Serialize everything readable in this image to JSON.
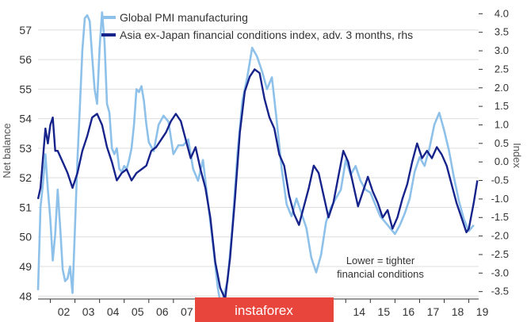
{
  "chart_data": {
    "type": "line",
    "title": "",
    "xlabel": "",
    "ylabel": "Net balance",
    "y2label": "Index",
    "ylim": [
      47.9,
      57.8
    ],
    "y2lim": [
      -3.7,
      4.2
    ],
    "yticks": [
      48,
      49,
      50,
      51,
      52,
      53,
      54,
      55,
      56,
      57
    ],
    "y2ticks": [
      "4.0",
      "3.5",
      "3.0",
      "2.5",
      "2.0",
      "1.5",
      "1.0",
      "0.5",
      "0.0",
      "-0.5",
      "-1.0",
      "-1.5",
      "-2.0",
      "-2.5",
      "-3.0",
      "-3.5"
    ],
    "xlim": [
      2001.5,
      2019.4
    ],
    "xticks": [
      {
        "label": "02",
        "x": 2002
      },
      {
        "label": "03",
        "x": 2003
      },
      {
        "label": "04",
        "x": 2004
      },
      {
        "label": "05",
        "x": 2005
      },
      {
        "label": "06",
        "x": 2006
      },
      {
        "label": "07",
        "x": 2007
      },
      {
        "label": "14",
        "x": 2014
      },
      {
        "label": "15",
        "x": 2015
      },
      {
        "label": "16",
        "x": 2016
      },
      {
        "label": "17",
        "x": 2017
      },
      {
        "label": "18",
        "x": 2018
      },
      {
        "label": "19",
        "x": 2019
      }
    ],
    "grid": true,
    "legend_position": "top-left",
    "annotation": [
      "Lower = tighter",
      "financial conditions"
    ],
    "series": [
      {
        "name": "Global PMI manufacturing",
        "axis": "left",
        "color": "#8ec1ea",
        "points": [
          [
            2001.5,
            48.2
          ],
          [
            2001.6,
            51.0
          ],
          [
            2001.7,
            51.8
          ],
          [
            2001.8,
            52.8
          ],
          [
            2001.9,
            51.6
          ],
          [
            2002.0,
            50.6
          ],
          [
            2002.1,
            49.2
          ],
          [
            2002.2,
            50.1
          ],
          [
            2002.3,
            51.6
          ],
          [
            2002.4,
            50.3
          ],
          [
            2002.5,
            48.9
          ],
          [
            2002.6,
            48.5
          ],
          [
            2002.7,
            48.6
          ],
          [
            2002.8,
            49.0
          ],
          [
            2002.9,
            48.1
          ],
          [
            2003.0,
            50.3
          ],
          [
            2003.1,
            52.6
          ],
          [
            2003.2,
            54.4
          ],
          [
            2003.3,
            56.3
          ],
          [
            2003.4,
            57.4
          ],
          [
            2003.5,
            57.5
          ],
          [
            2003.6,
            57.3
          ],
          [
            2003.7,
            56.1
          ],
          [
            2003.8,
            55.0
          ],
          [
            2003.9,
            54.5
          ],
          [
            2004.0,
            56.4
          ],
          [
            2004.1,
            57.6
          ],
          [
            2004.2,
            56.6
          ],
          [
            2004.3,
            54.5
          ],
          [
            2004.4,
            54.2
          ],
          [
            2004.5,
            53.0
          ],
          [
            2004.6,
            52.8
          ],
          [
            2004.7,
            53.0
          ],
          [
            2004.8,
            52.3
          ],
          [
            2004.9,
            52.2
          ],
          [
            2005.0,
            52.4
          ],
          [
            2005.1,
            52.3
          ],
          [
            2005.2,
            52.6
          ],
          [
            2005.3,
            53.0
          ],
          [
            2005.4,
            53.8
          ],
          [
            2005.5,
            55.0
          ],
          [
            2005.6,
            54.9
          ],
          [
            2005.7,
            55.1
          ],
          [
            2005.8,
            54.6
          ],
          [
            2005.9,
            53.8
          ],
          [
            2006.0,
            53.2
          ],
          [
            2006.2,
            52.9
          ],
          [
            2006.4,
            53.8
          ],
          [
            2006.6,
            54.1
          ],
          [
            2006.8,
            53.9
          ],
          [
            2007.0,
            52.8
          ],
          [
            2007.2,
            53.1
          ],
          [
            2007.4,
            53.1
          ],
          [
            2007.6,
            53.3
          ],
          [
            2007.8,
            52.3
          ],
          [
            2008.0,
            51.9
          ],
          [
            2008.2,
            52.6
          ],
          [
            2008.4,
            51.2
          ],
          [
            2008.6,
            49.8
          ],
          [
            2008.8,
            48.3
          ],
          [
            2008.9,
            47.8
          ],
          [
            2009.0,
            47.9
          ],
          [
            2009.2,
            48.5
          ],
          [
            2009.4,
            50.4
          ],
          [
            2009.6,
            52.8
          ],
          [
            2009.8,
            54.6
          ],
          [
            2010.0,
            55.4
          ],
          [
            2010.2,
            56.4
          ],
          [
            2010.4,
            56.1
          ],
          [
            2010.6,
            55.6
          ],
          [
            2010.8,
            55.0
          ],
          [
            2011.0,
            55.4
          ],
          [
            2011.2,
            53.9
          ],
          [
            2011.4,
            52.3
          ],
          [
            2011.6,
            51.1
          ],
          [
            2011.8,
            50.7
          ],
          [
            2012.0,
            51.3
          ],
          [
            2012.2,
            50.8
          ],
          [
            2012.4,
            50.3
          ],
          [
            2012.6,
            49.3
          ],
          [
            2012.8,
            48.8
          ],
          [
            2013.0,
            49.4
          ],
          [
            2013.2,
            50.5
          ],
          [
            2013.4,
            51.0
          ],
          [
            2013.6,
            51.3
          ],
          [
            2013.8,
            51.6
          ],
          [
            2014.0,
            52.6
          ],
          [
            2014.2,
            52.1
          ],
          [
            2014.4,
            52.4
          ],
          [
            2014.6,
            51.9
          ],
          [
            2014.8,
            51.6
          ],
          [
            2015.0,
            51.5
          ],
          [
            2015.2,
            51.1
          ],
          [
            2015.4,
            50.7
          ],
          [
            2015.6,
            50.5
          ],
          [
            2015.8,
            50.3
          ],
          [
            2016.0,
            50.1
          ],
          [
            2016.2,
            50.4
          ],
          [
            2016.4,
            50.8
          ],
          [
            2016.6,
            51.3
          ],
          [
            2016.8,
            52.2
          ],
          [
            2017.0,
            52.7
          ],
          [
            2017.2,
            52.4
          ],
          [
            2017.4,
            53.0
          ],
          [
            2017.6,
            53.8
          ],
          [
            2017.8,
            54.2
          ],
          [
            2018.0,
            53.6
          ],
          [
            2018.2,
            52.9
          ],
          [
            2018.4,
            52.0
          ],
          [
            2018.6,
            51.2
          ],
          [
            2018.8,
            50.6
          ],
          [
            2019.0,
            50.2
          ],
          [
            2019.2,
            50.4
          ]
        ]
      },
      {
        "name": "Asia ex-Japan financial conditions index, adv. 3 months, rhs",
        "axis": "right",
        "color": "#16238b",
        "points": [
          [
            2001.5,
            -1.0
          ],
          [
            2001.6,
            -0.7
          ],
          [
            2001.7,
            0.1
          ],
          [
            2001.8,
            0.9
          ],
          [
            2001.9,
            0.5
          ],
          [
            2002.0,
            1.0
          ],
          [
            2002.1,
            1.2
          ],
          [
            2002.2,
            0.3
          ],
          [
            2002.3,
            0.3
          ],
          [
            2002.5,
            0.0
          ],
          [
            2002.7,
            -0.3
          ],
          [
            2002.9,
            -0.7
          ],
          [
            2003.1,
            -0.3
          ],
          [
            2003.3,
            0.3
          ],
          [
            2003.5,
            0.7
          ],
          [
            2003.7,
            1.2
          ],
          [
            2003.9,
            1.3
          ],
          [
            2004.1,
            1.0
          ],
          [
            2004.3,
            0.4
          ],
          [
            2004.5,
            0.0
          ],
          [
            2004.7,
            -0.5
          ],
          [
            2004.9,
            -0.3
          ],
          [
            2005.1,
            -0.2
          ],
          [
            2005.3,
            -0.5
          ],
          [
            2005.5,
            -0.3
          ],
          [
            2005.7,
            -0.2
          ],
          [
            2005.9,
            -0.1
          ],
          [
            2006.1,
            0.3
          ],
          [
            2006.3,
            0.4
          ],
          [
            2006.5,
            0.6
          ],
          [
            2006.7,
            0.8
          ],
          [
            2006.9,
            1.1
          ],
          [
            2007.1,
            1.3
          ],
          [
            2007.3,
            1.1
          ],
          [
            2007.5,
            0.6
          ],
          [
            2007.7,
            0.1
          ],
          [
            2007.9,
            0.4
          ],
          [
            2008.1,
            -0.2
          ],
          [
            2008.3,
            -0.7
          ],
          [
            2008.5,
            -1.5
          ],
          [
            2008.7,
            -2.7
          ],
          [
            2008.9,
            -3.4
          ],
          [
            2009.1,
            -3.7
          ],
          [
            2009.3,
            -2.6
          ],
          [
            2009.5,
            -1.0
          ],
          [
            2009.7,
            0.8
          ],
          [
            2009.9,
            1.9
          ],
          [
            2010.1,
            2.3
          ],
          [
            2010.3,
            2.5
          ],
          [
            2010.5,
            2.4
          ],
          [
            2010.7,
            1.7
          ],
          [
            2010.9,
            1.2
          ],
          [
            2011.1,
            0.9
          ],
          [
            2011.3,
            0.2
          ],
          [
            2011.5,
            -0.1
          ],
          [
            2011.7,
            -0.9
          ],
          [
            2011.9,
            -1.4
          ],
          [
            2012.1,
            -1.7
          ],
          [
            2012.3,
            -1.2
          ],
          [
            2012.5,
            -0.7
          ],
          [
            2012.7,
            -0.1
          ],
          [
            2012.9,
            -0.3
          ],
          [
            2013.1,
            -0.9
          ],
          [
            2013.3,
            -1.5
          ],
          [
            2013.5,
            -1.1
          ],
          [
            2013.7,
            -0.4
          ],
          [
            2013.9,
            0.3
          ],
          [
            2014.1,
            0.0
          ],
          [
            2014.3,
            -0.6
          ],
          [
            2014.5,
            -1.2
          ],
          [
            2014.7,
            -0.8
          ],
          [
            2014.9,
            -0.4
          ],
          [
            2015.1,
            -0.8
          ],
          [
            2015.3,
            -1.1
          ],
          [
            2015.5,
            -1.5
          ],
          [
            2015.7,
            -1.3
          ],
          [
            2015.9,
            -1.8
          ],
          [
            2016.1,
            -1.5
          ],
          [
            2016.3,
            -1.0
          ],
          [
            2016.5,
            -0.6
          ],
          [
            2016.7,
            0.0
          ],
          [
            2016.9,
            0.5
          ],
          [
            2017.1,
            0.1
          ],
          [
            2017.3,
            0.3
          ],
          [
            2017.5,
            0.1
          ],
          [
            2017.7,
            0.4
          ],
          [
            2017.9,
            0.2
          ],
          [
            2018.1,
            -0.1
          ],
          [
            2018.3,
            -0.6
          ],
          [
            2018.5,
            -1.1
          ],
          [
            2018.7,
            -1.5
          ],
          [
            2018.9,
            -1.9
          ],
          [
            2019.0,
            -1.8
          ],
          [
            2019.2,
            -1.1
          ],
          [
            2019.35,
            -0.5
          ]
        ]
      }
    ]
  },
  "watermark": {
    "text": "instaforex",
    "color": "#e8453c"
  }
}
